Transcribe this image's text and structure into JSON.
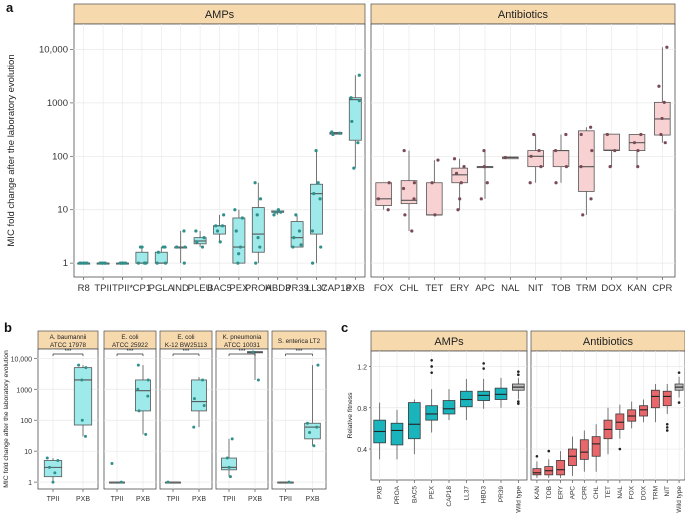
{
  "colors": {
    "amp_box": "#9EEAEA",
    "amp_strip": "#9FE9EA",
    "abx_box": "#F8D2D3",
    "strip": "#F7D9AE",
    "fit_amp": "#19B4BC",
    "fit_abx": "#E8676A",
    "fit_wt": "#BDBDBD",
    "point": "#2F8F8A",
    "point_abx": "#7A4A55",
    "grid": "#E8E8E8",
    "frame": "#4D4D4D"
  },
  "chart_data": [
    {
      "id": "a",
      "panel_label": "a",
      "type": "box",
      "ylabel": "MIC fold change after the laboratory evolution",
      "yscale": "log",
      "ylim": [
        0.55,
        30000
      ],
      "yticks": [
        1,
        10,
        100,
        1000,
        10000
      ],
      "ytick_labels": [
        "1",
        "10",
        "100",
        "1000",
        "10,000"
      ],
      "facets": [
        {
          "title": "AMPs",
          "groups": [
            {
              "name": "R8",
              "q1": 1,
              "median": 1,
              "q3": 1,
              "lo": 1,
              "hi": 1,
              "points": [
                1,
                1,
                1,
                1,
                1
              ]
            },
            {
              "name": "TPII",
              "q1": 1,
              "median": 1,
              "q3": 1,
              "lo": 1,
              "hi": 1,
              "points": [
                1,
                1,
                1,
                1,
                1
              ]
            },
            {
              "name": "TPII*",
              "q1": 1,
              "median": 1,
              "q3": 1,
              "lo": 1,
              "hi": 1,
              "points": [
                1,
                1,
                1,
                1,
                1
              ]
            },
            {
              "name": "CP1",
              "q1": 1,
              "median": 1,
              "q3": 1.6,
              "lo": 1,
              "hi": 2,
              "points": [
                1,
                1,
                1,
                2,
                2
              ]
            },
            {
              "name": "PGLA",
              "q1": 1,
              "median": 1,
              "q3": 1.6,
              "lo": 1,
              "hi": 2,
              "points": [
                1,
                1,
                2,
                1.6,
                2
              ]
            },
            {
              "name": "IND",
              "q1": 2,
              "median": 2,
              "q3": 2,
              "lo": 1,
              "hi": 4,
              "points": [
                1,
                2,
                2,
                2,
                4
              ]
            },
            {
              "name": "PLEU",
              "q1": 2.3,
              "median": 2.6,
              "q3": 3,
              "lo": 2,
              "hi": 4,
              "points": [
                2,
                2.5,
                3,
                4
              ]
            },
            {
              "name": "BAC5",
              "q1": 3.5,
              "median": 5,
              "q3": 5,
              "lo": 2.5,
              "hi": 8,
              "points": [
                2.5,
                4,
                5,
                5,
                8
              ]
            },
            {
              "name": "PEX",
              "q1": 1,
              "median": 2,
              "q3": 7,
              "lo": 1,
              "hi": 10,
              "points": [
                1,
                1.5,
                2,
                4,
                7,
                10
              ]
            },
            {
              "name": "PROA",
              "q1": 1.6,
              "median": 3.5,
              "q3": 11,
              "lo": 1,
              "hi": 32,
              "points": [
                1,
                2,
                3,
                8,
                16,
                32
              ]
            },
            {
              "name": "HBD3",
              "q1": 9,
              "median": 9,
              "q3": 9.5,
              "lo": 8,
              "hi": 10,
              "points": [
                8,
                9,
                9,
                10
              ]
            },
            {
              "name": "PR39",
              "q1": 2,
              "median": 3,
              "q3": 6,
              "lo": 2,
              "hi": 8,
              "points": [
                2,
                2.2,
                3,
                4,
                8
              ]
            },
            {
              "name": "LL37",
              "q1": 3.5,
              "median": 20,
              "q3": 30,
              "lo": 1,
              "hi": 128,
              "points": [
                1,
                2,
                4,
                16,
                20,
                32,
                128
              ]
            },
            {
              "name": "CAP18",
              "q1": 260,
              "median": 270,
              "q3": 280,
              "lo": 256,
              "hi": 285,
              "points": [
                256,
                270,
                285
              ]
            },
            {
              "name": "PXB",
              "q1": 200,
              "median": 1150,
              "q3": 1250,
              "lo": 60,
              "hi": 3300,
              "points": [
                60,
                180,
                450,
                1100,
                1250,
                3300
              ]
            }
          ]
        },
        {
          "title": "Antibiotics",
          "groups": [
            {
              "name": "FOX",
              "q1": 12,
              "median": 16,
              "q3": 32,
              "lo": 10,
              "hi": 32,
              "points": [
                10,
                16,
                32
              ]
            },
            {
              "name": "CHL",
              "q1": 13,
              "median": 15,
              "q3": 35,
              "lo": 4,
              "hi": 128,
              "points": [
                4,
                8,
                16,
                25,
                32,
                128
              ]
            },
            {
              "name": "TET",
              "q1": 8,
              "median": 8,
              "q3": 32,
              "lo": 8,
              "hi": 85,
              "points": [
                8,
                32,
                85
              ]
            },
            {
              "name": "ERY",
              "q1": 32,
              "median": 45,
              "q3": 60,
              "lo": 10,
              "hi": 90,
              "points": [
                10,
                16,
                32,
                48,
                64,
                90
              ]
            },
            {
              "name": "APC",
              "q1": 64,
              "median": 64,
              "q3": 64,
              "lo": 16,
              "hi": 128,
              "points": [
                16,
                32,
                64,
                128
              ]
            },
            {
              "name": "NAL",
              "q1": 90,
              "median": 95,
              "q3": 97,
              "lo": 90,
              "hi": 100,
              "points": [
                95
              ]
            },
            {
              "name": "NIT",
              "q1": 64,
              "median": 100,
              "q3": 128,
              "lo": 32,
              "hi": 256,
              "points": [
                32,
                64,
                100,
                128,
                256
              ]
            },
            {
              "name": "TOB",
              "q1": 64,
              "median": 128,
              "q3": 128,
              "lo": 32,
              "hi": 256,
              "points": [
                32,
                64,
                128,
                256
              ]
            },
            {
              "name": "TRM",
              "q1": 22,
              "median": 64,
              "q3": 300,
              "lo": 8,
              "hi": 350,
              "points": [
                8,
                16,
                64,
                128,
                256,
                350
              ]
            },
            {
              "name": "DOX",
              "q1": 128,
              "median": 130,
              "q3": 260,
              "lo": 64,
              "hi": 260,
              "points": [
                64,
                128,
                256
              ]
            },
            {
              "name": "KAN",
              "q1": 128,
              "median": 180,
              "q3": 256,
              "lo": 64,
              "hi": 256,
              "points": [
                64,
                128,
                180,
                256
              ]
            },
            {
              "name": "CPR",
              "q1": 250,
              "median": 500,
              "q3": 1024,
              "lo": 180,
              "hi": 11000,
              "points": [
                180,
                256,
                512,
                1024,
                2048,
                11000
              ]
            }
          ]
        }
      ]
    },
    {
      "id": "b",
      "panel_label": "b",
      "type": "box",
      "ylabel": "MIC fold change after the laboratory evolution",
      "yscale": "log",
      "ylim": [
        0.6,
        20000
      ],
      "yticks": [
        1,
        10,
        100,
        1000,
        10000
      ],
      "ytick_labels": [
        "1",
        "10",
        "100",
        "1000",
        "10,000"
      ],
      "significance": "***",
      "facets": [
        {
          "title": [
            "A. baumannii",
            "ATCC 17978"
          ],
          "groups": [
            {
              "name": "TPII",
              "q1": 1.5,
              "median": 3,
              "q3": 5,
              "lo": 1,
              "hi": 6,
              "points": [
                1,
                2,
                3,
                5,
                6
              ]
            },
            {
              "name": "PXB",
              "q1": 70,
              "median": 2000,
              "q3": 5000,
              "lo": 30,
              "hi": 6000,
              "points": [
                30,
                100,
                2000,
                5000,
                6000
              ]
            }
          ]
        },
        {
          "title": [
            "E. coli",
            "ATCC 25922"
          ],
          "groups": [
            {
              "name": "TPII",
              "q1": 1,
              "median": 1,
              "q3": 1,
              "lo": 1,
              "hi": 1,
              "points": [
                1,
                4
              ]
            },
            {
              "name": "PXB",
              "q1": 200,
              "median": 900,
              "q3": 2000,
              "lo": 35,
              "hi": 6000,
              "points": [
                35,
                200,
                600,
                1000,
                2000,
                6000
              ]
            }
          ]
        },
        {
          "title": [
            "E. coli",
            "K-12 BW25113"
          ],
          "groups": [
            {
              "name": "TPII",
              "q1": 1,
              "median": 1,
              "q3": 1,
              "lo": 1,
              "hi": 1,
              "points": [
                1
              ]
            },
            {
              "name": "PXB",
              "q1": 200,
              "median": 400,
              "q3": 2000,
              "lo": 60,
              "hi": 2500,
              "points": [
                60,
                300,
                500,
                2000
              ]
            }
          ]
        },
        {
          "title": [
            "K. pneumonia",
            "ATCC 10031"
          ],
          "groups": [
            {
              "name": "TPII",
              "q1": 2.5,
              "median": 3,
              "q3": 6,
              "lo": 1.5,
              "hi": 25,
              "points": [
                1.5,
                3,
                6,
                25
              ]
            },
            {
              "name": "PXB",
              "q1": 15000,
              "median": 16000,
              "q3": 16500,
              "lo": 2000,
              "hi": 17000,
              "points": [
                2000,
                16000
              ]
            }
          ]
        },
        {
          "title": [
            "S. enterica LT2"
          ],
          "groups": [
            {
              "name": "TPII",
              "q1": 1,
              "median": 1,
              "q3": 1,
              "lo": 1,
              "hi": 1,
              "points": [
                1
              ]
            },
            {
              "name": "PXB",
              "q1": 25,
              "median": 60,
              "q3": 80,
              "lo": 15,
              "hi": 6000,
              "points": [
                15,
                40,
                60,
                80,
                6000
              ]
            }
          ]
        }
      ]
    },
    {
      "id": "c",
      "panel_label": "c",
      "type": "box",
      "ylabel": "Relative fitness",
      "yscale": "linear",
      "ylim": [
        0.1,
        1.35
      ],
      "yticks": [
        0.4,
        0.8,
        1.2
      ],
      "ytick_labels": [
        "0.4",
        "0.8",
        "1.2"
      ],
      "facets": [
        {
          "title": "AMPs",
          "groups": [
            {
              "name": "PXB",
              "q1": 0.46,
              "median": 0.57,
              "q3": 0.68,
              "lo": 0.3,
              "hi": 0.85
            },
            {
              "name": "PROA",
              "q1": 0.44,
              "median": 0.58,
              "q3": 0.65,
              "lo": 0.3,
              "hi": 0.78
            },
            {
              "name": "BAC5",
              "q1": 0.5,
              "median": 0.64,
              "q3": 0.85,
              "lo": 0.35,
              "hi": 0.88
            },
            {
              "name": "PEX",
              "q1": 0.68,
              "median": 0.74,
              "q3": 0.82,
              "lo": 0.56,
              "hi": 0.98,
              "outliers": [
                1.14,
                1.2,
                1.26
              ]
            },
            {
              "name": "CAP18",
              "q1": 0.74,
              "median": 0.79,
              "q3": 0.87,
              "lo": 0.68,
              "hi": 0.98
            },
            {
              "name": "LL37",
              "q1": 0.81,
              "median": 0.88,
              "q3": 0.96,
              "lo": 0.68,
              "hi": 1.08
            },
            {
              "name": "HBD3",
              "q1": 0.87,
              "median": 0.92,
              "q3": 0.96,
              "lo": 0.79,
              "hi": 1.08,
              "outliers": [
                1.18,
                1.23
              ]
            },
            {
              "name": "PR39",
              "q1": 0.88,
              "median": 0.93,
              "q3": 0.99,
              "lo": 0.8,
              "hi": 1.09
            },
            {
              "name": "Wild type",
              "q1": 0.97,
              "median": 1.0,
              "q3": 1.03,
              "lo": 0.88,
              "hi": 1.09,
              "outliers": [
                0.84,
                0.86,
                1.12,
                1.15
              ]
            }
          ]
        },
        {
          "title": "Antibiotics",
          "groups": [
            {
              "name": "KAN",
              "q1": 0.15,
              "median": 0.17,
              "q3": 0.21,
              "lo": 0.12,
              "hi": 0.28,
              "outliers": [
                0.33
              ]
            },
            {
              "name": "TOB",
              "q1": 0.15,
              "median": 0.19,
              "q3": 0.23,
              "lo": 0.12,
              "hi": 0.3,
              "outliers": [
                0.38
              ]
            },
            {
              "name": "ERY",
              "q1": 0.15,
              "median": 0.2,
              "q3": 0.29,
              "lo": 0.12,
              "hi": 0.38
            },
            {
              "name": "APC",
              "q1": 0.24,
              "median": 0.33,
              "q3": 0.4,
              "lo": 0.14,
              "hi": 0.52
            },
            {
              "name": "CPR",
              "q1": 0.3,
              "median": 0.37,
              "q3": 0.49,
              "lo": 0.18,
              "hi": 0.58
            },
            {
              "name": "CHL",
              "q1": 0.33,
              "median": 0.45,
              "q3": 0.52,
              "lo": 0.18,
              "hi": 0.64
            },
            {
              "name": "TET",
              "q1": 0.5,
              "median": 0.59,
              "q3": 0.68,
              "lo": 0.35,
              "hi": 0.8
            },
            {
              "name": "NAL",
              "q1": 0.59,
              "median": 0.66,
              "q3": 0.74,
              "lo": 0.5,
              "hi": 0.83,
              "outliers": [
                0.4
              ]
            },
            {
              "name": "FOX",
              "q1": 0.67,
              "median": 0.72,
              "q3": 0.78,
              "lo": 0.6,
              "hi": 0.86
            },
            {
              "name": "DOX",
              "q1": 0.72,
              "median": 0.78,
              "q3": 0.82,
              "lo": 0.66,
              "hi": 0.88
            },
            {
              "name": "TRM",
              "q1": 0.8,
              "median": 0.91,
              "q3": 0.97,
              "lo": 0.66,
              "hi": 1.03
            },
            {
              "name": "NIT",
              "q1": 0.82,
              "median": 0.91,
              "q3": 0.96,
              "lo": 0.74,
              "hi": 1.03,
              "outliers": [
                0.58,
                0.61,
                0.64
              ]
            },
            {
              "name": "Wild type",
              "q1": 0.97,
              "median": 1.0,
              "q3": 1.03,
              "lo": 0.9,
              "hi": 1.1,
              "outliers": [
                0.85,
                1.14
              ]
            }
          ]
        }
      ]
    }
  ]
}
